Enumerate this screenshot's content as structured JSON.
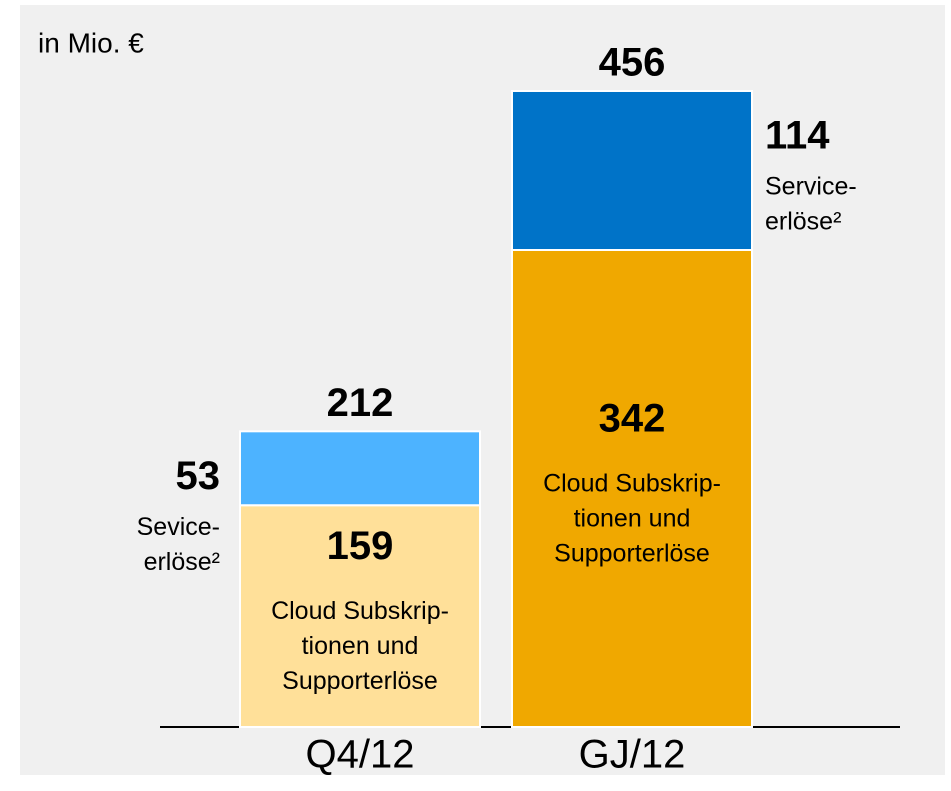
{
  "chart_data": {
    "type": "stacked_bar",
    "unit": "in Mio. €",
    "categories": [
      "Q4/12",
      "GJ/12"
    ],
    "series": [
      {
        "name": "Cloud Subskriptionen und Supporterlöse",
        "colors": [
          "#ffe099",
          "#f0a800"
        ],
        "values": [
          159,
          342
        ],
        "labels": [
          [
            "Cloud Subskrip-",
            "tionen und",
            "Supporterlöse"
          ],
          [
            "Cloud Subskrip-",
            "tionen und",
            "Supporterlöse"
          ]
        ]
      },
      {
        "name": "Serviceerlöse",
        "colors": [
          "#4db3ff",
          "#0073c8"
        ],
        "values": [
          53,
          114
        ],
        "labels": [
          [
            "Sevice-",
            "erlöse²"
          ],
          [
            "Service-",
            "erlöse²"
          ]
        ]
      }
    ],
    "totals": [
      212,
      456
    ]
  }
}
